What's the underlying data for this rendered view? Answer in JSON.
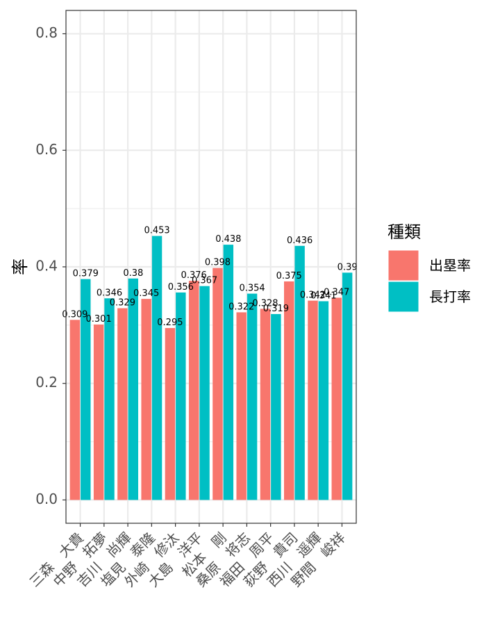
{
  "chart_data": {
    "type": "bar",
    "title": "",
    "xlabel": "",
    "ylabel": "率",
    "ylim": [
      -0.04,
      0.84
    ],
    "yticks": [
      0.0,
      0.2,
      0.4,
      0.6,
      0.8
    ],
    "ytick_labels": [
      "0.0",
      "0.2",
      "0.4",
      "0.6",
      "0.8"
    ],
    "grid": true,
    "legend_position": "right",
    "legend_title": "種類",
    "categories": [
      "三森　大貴",
      "中野　拓夢",
      "吉川　尚輝",
      "塩見　泰隆",
      "外崎　修汰",
      "大島　洋平",
      "松本　剛",
      "桑原　将志",
      "福田　周平",
      "荻野　貴司",
      "西川　遥輝",
      "野間　峻祥"
    ],
    "series": [
      {
        "name": "出塁率",
        "color": "#F8766D",
        "values": [
          0.309,
          0.301,
          0.329,
          0.345,
          0.295,
          0.376,
          0.398,
          0.322,
          0.328,
          0.375,
          0.342,
          0.347
        ],
        "labels": [
          "0.309",
          "0.301",
          "0.329",
          "0.345",
          "0.295",
          "0.376",
          "0.398",
          "0.322",
          "0.328",
          "0.375",
          "0.342",
          "0.347"
        ]
      },
      {
        "name": "長打率",
        "color": "#00BFC4",
        "values": [
          0.379,
          0.346,
          0.38,
          0.453,
          0.356,
          0.367,
          0.438,
          0.354,
          0.319,
          0.436,
          0.341,
          0.39
        ],
        "labels": [
          "0.379",
          "0.346",
          "0.38",
          "0.453",
          "0.356",
          "0.367",
          "0.438",
          "0.354",
          "0.319",
          "0.436",
          "0.341",
          "0.39"
        ]
      }
    ]
  }
}
